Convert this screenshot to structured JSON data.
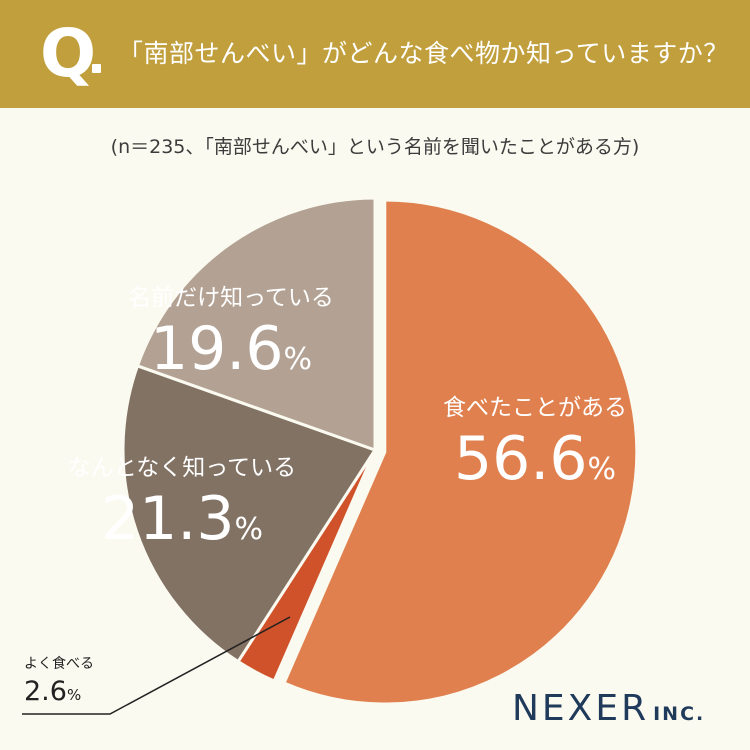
{
  "header": {
    "q_mark": "Q",
    "question": "「南部せんべい」がどんな食べ物か知っていますか？"
  },
  "subtitle": "(n＝235、「南部せんべい」という名前を聞いたことがある方)",
  "logo": {
    "main": "NEXER",
    "suffix": "INC."
  },
  "colors": {
    "header_bg": "#c09f3c",
    "slice_ate": "#e0804e",
    "slice_often": "#d0522a",
    "slice_somewhat": "#827264",
    "slice_name_only": "#b3a294"
  },
  "chart_data": {
    "type": "pie",
    "title": "「南部せんべい」がどんな食べ物か知っていますか？",
    "subtitle": "(n＝235、「南部せんべい」という名前を聞いたことがある方)",
    "unit": "%",
    "slices": [
      {
        "label": "食べたことがある",
        "value": 56.6,
        "value_text": "56.6",
        "color": "#e0804e",
        "exploded": true
      },
      {
        "label": "よく食べる",
        "value": 2.6,
        "value_text": "2.6",
        "color": "#d0522a",
        "exploded": false
      },
      {
        "label": "なんとなく知っている",
        "value": 21.3,
        "value_text": "21.3",
        "color": "#827264",
        "exploded": false
      },
      {
        "label": "名前だけ知っている",
        "value": 19.6,
        "value_text": "19.6",
        "color": "#b3a294",
        "exploded": false
      }
    ]
  }
}
